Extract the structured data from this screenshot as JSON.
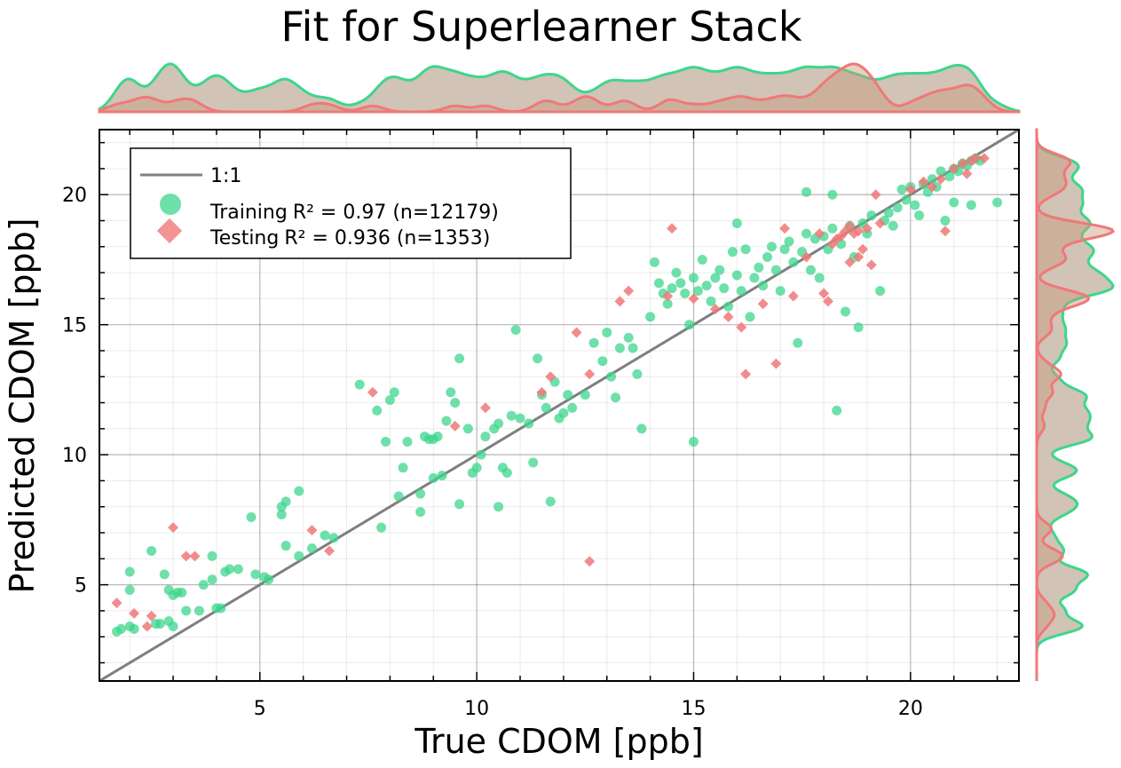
{
  "chart_data": {
    "type": "scatter",
    "title": "Fit for Superlearner Stack",
    "xlabel": "True CDOM [ppb]",
    "ylabel": "Predicted CDOM [ppb]",
    "xlim": [
      1.3,
      22.5
    ],
    "ylim": [
      1.3,
      22.5
    ],
    "xticks": [
      5,
      10,
      15,
      20
    ],
    "yticks": [
      5,
      10,
      15,
      20
    ],
    "grid": true,
    "legend_position": "top-left",
    "reference_line": {
      "name": "1:1",
      "x": [
        1.3,
        22.5
      ],
      "y": [
        1.3,
        22.5
      ],
      "color": "#7f7f7f"
    },
    "series": [
      {
        "name": "Training",
        "legend_label": "Training R² = 0.97 (n=12179)",
        "r2_label": "R² = 0.97 (n=12179)",
        "marker": "circle",
        "color": "#3dd68c",
        "points": [
          [
            1.7,
            3.2
          ],
          [
            1.8,
            3.3
          ],
          [
            2.0,
            3.4
          ],
          [
            2.0,
            5.5
          ],
          [
            2.0,
            4.8
          ],
          [
            2.1,
            3.3
          ],
          [
            2.5,
            6.3
          ],
          [
            2.6,
            3.5
          ],
          [
            2.7,
            3.5
          ],
          [
            2.8,
            5.4
          ],
          [
            2.9,
            4.8
          ],
          [
            2.9,
            3.6
          ],
          [
            3.0,
            4.6
          ],
          [
            3.1,
            4.7
          ],
          [
            3.2,
            4.7
          ],
          [
            3.0,
            3.4
          ],
          [
            3.3,
            4.0
          ],
          [
            3.6,
            4.0
          ],
          [
            3.7,
            5.0
          ],
          [
            3.9,
            6.1
          ],
          [
            3.9,
            5.2
          ],
          [
            4.0,
            4.1
          ],
          [
            4.1,
            4.1
          ],
          [
            4.2,
            5.5
          ],
          [
            4.3,
            5.6
          ],
          [
            4.5,
            5.6
          ],
          [
            4.8,
            7.6
          ],
          [
            4.9,
            5.4
          ],
          [
            5.1,
            5.3
          ],
          [
            5.2,
            5.2
          ],
          [
            5.5,
            7.7
          ],
          [
            5.5,
            8.0
          ],
          [
            5.6,
            8.2
          ],
          [
            5.6,
            6.5
          ],
          [
            5.9,
            6.1
          ],
          [
            5.9,
            8.6
          ],
          [
            6.2,
            6.4
          ],
          [
            6.5,
            6.9
          ],
          [
            6.7,
            6.8
          ],
          [
            7.3,
            12.7
          ],
          [
            7.7,
            11.7
          ],
          [
            7.8,
            7.2
          ],
          [
            7.9,
            10.5
          ],
          [
            8.0,
            12.1
          ],
          [
            8.1,
            12.4
          ],
          [
            8.2,
            8.4
          ],
          [
            8.3,
            9.5
          ],
          [
            8.4,
            10.5
          ],
          [
            8.7,
            8.5
          ],
          [
            8.7,
            7.8
          ],
          [
            8.8,
            10.7
          ],
          [
            8.9,
            10.6
          ],
          [
            9.0,
            10.6
          ],
          [
            9.0,
            9.1
          ],
          [
            9.1,
            10.7
          ],
          [
            9.2,
            9.2
          ],
          [
            9.3,
            11.3
          ],
          [
            9.4,
            12.4
          ],
          [
            9.5,
            12.0
          ],
          [
            9.6,
            8.1
          ],
          [
            9.6,
            13.7
          ],
          [
            9.8,
            11.0
          ],
          [
            9.9,
            9.3
          ],
          [
            10.0,
            9.5
          ],
          [
            10.1,
            10.0
          ],
          [
            10.2,
            10.7
          ],
          [
            10.4,
            11.0
          ],
          [
            10.5,
            11.2
          ],
          [
            10.5,
            8.0
          ],
          [
            10.6,
            9.5
          ],
          [
            10.7,
            9.3
          ],
          [
            10.8,
            11.5
          ],
          [
            10.9,
            14.8
          ],
          [
            11.0,
            11.4
          ],
          [
            11.2,
            11.2
          ],
          [
            11.3,
            9.7
          ],
          [
            11.4,
            13.7
          ],
          [
            11.5,
            12.3
          ],
          [
            11.6,
            11.8
          ],
          [
            11.7,
            8.2
          ],
          [
            11.8,
            12.8
          ],
          [
            11.9,
            11.4
          ],
          [
            12.0,
            11.6
          ],
          [
            12.1,
            12.3
          ],
          [
            12.2,
            11.8
          ],
          [
            12.5,
            12.3
          ],
          [
            12.7,
            14.3
          ],
          [
            12.9,
            13.6
          ],
          [
            13.0,
            14.7
          ],
          [
            13.1,
            13.0
          ],
          [
            13.2,
            12.2
          ],
          [
            13.3,
            14.1
          ],
          [
            13.5,
            14.5
          ],
          [
            13.6,
            14.1
          ],
          [
            13.7,
            13.1
          ],
          [
            13.8,
            11.0
          ],
          [
            14.0,
            15.3
          ],
          [
            14.1,
            17.4
          ],
          [
            14.2,
            16.6
          ],
          [
            14.3,
            16.2
          ],
          [
            14.4,
            15.8
          ],
          [
            14.5,
            16.4
          ],
          [
            14.6,
            17.0
          ],
          [
            14.7,
            16.6
          ],
          [
            14.8,
            16.2
          ],
          [
            14.9,
            15.0
          ],
          [
            15.0,
            16.8
          ],
          [
            15.0,
            10.5
          ],
          [
            15.1,
            16.3
          ],
          [
            15.2,
            17.5
          ],
          [
            15.3,
            16.5
          ],
          [
            15.4,
            15.9
          ],
          [
            15.5,
            16.8
          ],
          [
            15.6,
            17.1
          ],
          [
            15.7,
            16.4
          ],
          [
            15.8,
            15.7
          ],
          [
            15.9,
            17.8
          ],
          [
            16.0,
            16.9
          ],
          [
            16.1,
            16.3
          ],
          [
            16.2,
            17.9
          ],
          [
            16.3,
            15.3
          ],
          [
            16.4,
            16.8
          ],
          [
            16.5,
            17.2
          ],
          [
            16.6,
            16.5
          ],
          [
            16.7,
            17.6
          ],
          [
            16.8,
            18.0
          ],
          [
            16.9,
            17.1
          ],
          [
            17.0,
            16.3
          ],
          [
            17.1,
            17.9
          ],
          [
            17.2,
            18.2
          ],
          [
            17.3,
            17.4
          ],
          [
            17.4,
            14.3
          ],
          [
            17.5,
            17.8
          ],
          [
            17.6,
            18.5
          ],
          [
            17.7,
            17.1
          ],
          [
            17.8,
            18.3
          ],
          [
            17.9,
            16.8
          ],
          [
            18.0,
            18.4
          ],
          [
            18.1,
            17.9
          ],
          [
            18.2,
            18.7
          ],
          [
            18.3,
            11.7
          ],
          [
            18.4,
            18.1
          ],
          [
            18.5,
            15.5
          ],
          [
            18.6,
            18.8
          ],
          [
            18.7,
            17.6
          ],
          [
            18.8,
            14.9
          ],
          [
            18.9,
            18.9
          ],
          [
            19.0,
            18.5
          ],
          [
            19.1,
            19.2
          ],
          [
            19.3,
            16.3
          ],
          [
            19.4,
            19.0
          ],
          [
            19.5,
            19.3
          ],
          [
            19.6,
            18.8
          ],
          [
            19.7,
            19.5
          ],
          [
            19.8,
            20.2
          ],
          [
            19.9,
            19.8
          ],
          [
            20.0,
            20.3
          ],
          [
            20.1,
            19.6
          ],
          [
            20.2,
            19.2
          ],
          [
            20.3,
            20.4
          ],
          [
            20.4,
            20.1
          ],
          [
            20.5,
            20.6
          ],
          [
            20.6,
            20.3
          ],
          [
            20.7,
            20.9
          ],
          [
            20.8,
            19.0
          ],
          [
            20.9,
            20.7
          ],
          [
            21.0,
            21.0
          ],
          [
            21.1,
            20.9
          ],
          [
            21.2,
            21.2
          ],
          [
            21.3,
            21.1
          ],
          [
            21.4,
            21.3
          ],
          [
            21.5,
            21.4
          ],
          [
            21.6,
            21.3
          ],
          [
            21.0,
            19.7
          ],
          [
            21.4,
            19.6
          ],
          [
            22.0,
            19.7
          ],
          [
            18.2,
            20.0
          ],
          [
            17.6,
            20.1
          ],
          [
            16.0,
            18.9
          ]
        ]
      },
      {
        "name": "Testing",
        "legend_label": "Testing R² = 0.936 (n=1353)",
        "r2_label": "R² = 0.936 (n=1353)",
        "marker": "diamond",
        "color": "#f07878",
        "points": [
          [
            1.7,
            4.3
          ],
          [
            2.1,
            3.9
          ],
          [
            2.4,
            3.4
          ],
          [
            2.5,
            3.8
          ],
          [
            3.0,
            7.2
          ],
          [
            3.3,
            6.1
          ],
          [
            3.5,
            6.1
          ],
          [
            6.2,
            7.1
          ],
          [
            6.6,
            6.3
          ],
          [
            7.6,
            12.4
          ],
          [
            9.5,
            11.1
          ],
          [
            10.2,
            11.8
          ],
          [
            11.5,
            12.4
          ],
          [
            11.7,
            13.0
          ],
          [
            12.3,
            14.7
          ],
          [
            12.6,
            5.9
          ],
          [
            12.6,
            13.1
          ],
          [
            13.3,
            15.9
          ],
          [
            13.5,
            16.3
          ],
          [
            14.4,
            16.1
          ],
          [
            14.5,
            18.7
          ],
          [
            15.0,
            16.0
          ],
          [
            15.5,
            15.6
          ],
          [
            15.8,
            15.3
          ],
          [
            16.1,
            14.9
          ],
          [
            16.2,
            13.1
          ],
          [
            16.6,
            15.8
          ],
          [
            16.9,
            13.5
          ],
          [
            17.1,
            18.7
          ],
          [
            17.3,
            16.1
          ],
          [
            17.6,
            17.6
          ],
          [
            17.9,
            18.5
          ],
          [
            18.0,
            16.2
          ],
          [
            18.1,
            15.9
          ],
          [
            18.3,
            18.3
          ],
          [
            18.5,
            18.6
          ],
          [
            18.6,
            17.4
          ],
          [
            18.7,
            18.5
          ],
          [
            18.8,
            17.6
          ],
          [
            18.9,
            17.9
          ],
          [
            19.1,
            17.3
          ],
          [
            19.3,
            18.9
          ],
          [
            18.2,
            18.1
          ],
          [
            18.4,
            18.4
          ],
          [
            18.6,
            18.8
          ],
          [
            18.8,
            18.6
          ],
          [
            19.0,
            18.7
          ],
          [
            20.0,
            20.2
          ],
          [
            20.3,
            20.5
          ],
          [
            20.5,
            20.3
          ],
          [
            20.7,
            20.6
          ],
          [
            20.8,
            18.6
          ],
          [
            21.0,
            21.0
          ],
          [
            21.2,
            21.2
          ],
          [
            21.4,
            21.3
          ],
          [
            21.5,
            21.4
          ],
          [
            21.7,
            21.4
          ],
          [
            21.3,
            20.8
          ],
          [
            19.2,
            20.0
          ]
        ]
      }
    ]
  }
}
